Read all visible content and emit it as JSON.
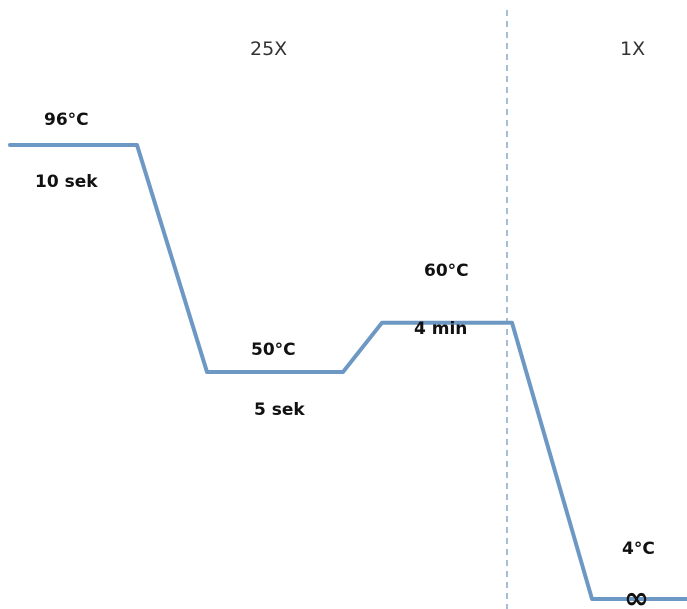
{
  "cycles": {
    "repeat_label": "25X",
    "final_label": "1X"
  },
  "steps": [
    {
      "id": "denature",
      "temp_label": "96°C",
      "time_label": "10 sek"
    },
    {
      "id": "anneal",
      "temp_label": "50°C",
      "time_label": "5 sek"
    },
    {
      "id": "extend",
      "temp_label": "60°C",
      "time_label": "4 min"
    },
    {
      "id": "hold",
      "temp_label": "4°C",
      "time_label": "∞"
    }
  ],
  "profile_temperatures_c": [
    96,
    96,
    50,
    50,
    60,
    60,
    4,
    4
  ],
  "colors": {
    "profile_line": "#6e98c4",
    "divider": "#a8bcd4",
    "text": "#111111"
  }
}
